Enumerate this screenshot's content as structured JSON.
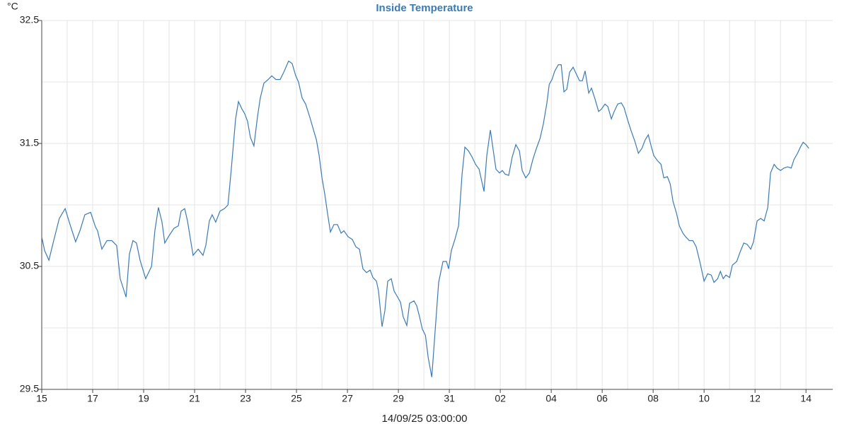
{
  "chart_data": {
    "type": "line",
    "title": "Inside Temperature",
    "y_unit": "°C",
    "x_label": "14/09/25 03:00:00",
    "color": "#3b7bb4",
    "grid": true,
    "xlim": [
      0,
      30.3
    ],
    "ylim": [
      29.5,
      32.5
    ],
    "xticks": [
      {
        "value": 0,
        "label": "15"
      },
      {
        "value": 2,
        "label": "17"
      },
      {
        "value": 4,
        "label": "19"
      },
      {
        "value": 6,
        "label": "21"
      },
      {
        "value": 8,
        "label": "23"
      },
      {
        "value": 10,
        "label": "25"
      },
      {
        "value": 12,
        "label": "27"
      },
      {
        "value": 14,
        "label": "29"
      },
      {
        "value": 16,
        "label": "31"
      },
      {
        "value": 18,
        "label": "02"
      },
      {
        "value": 20,
        "label": "04"
      },
      {
        "value": 22,
        "label": "06"
      },
      {
        "value": 24,
        "label": "08"
      },
      {
        "value": 26,
        "label": "10"
      },
      {
        "value": 28,
        "label": "12"
      },
      {
        "value": 30,
        "label": "14"
      }
    ],
    "xminor": [
      1,
      3,
      5,
      7,
      9,
      11,
      13,
      15,
      17,
      19,
      21,
      23,
      25,
      27,
      29
    ],
    "yticks": [
      29.5,
      30.5,
      31.5,
      32.5
    ],
    "yminor": [
      30,
      31,
      32
    ],
    "x": [
      0,
      0.11,
      0.28,
      0.47,
      0.69,
      0.92,
      1.11,
      1.33,
      1.5,
      1.69,
      1.92,
      2.11,
      2.19,
      2.36,
      2.56,
      2.75,
      2.94,
      3.08,
      3.31,
      3.44,
      3.58,
      3.72,
      3.86,
      4.08,
      4.31,
      4.44,
      4.58,
      4.72,
      4.83,
      5.0,
      5.19,
      5.36,
      5.47,
      5.61,
      5.72,
      5.94,
      6.14,
      6.33,
      6.44,
      6.58,
      6.69,
      6.83,
      7.0,
      7.17,
      7.31,
      7.44,
      7.61,
      7.72,
      7.86,
      7.97,
      8.08,
      8.19,
      8.33,
      8.47,
      8.58,
      8.72,
      8.89,
      9.03,
      9.19,
      9.36,
      9.5,
      9.69,
      9.83,
      9.97,
      10.08,
      10.22,
      10.36,
      10.53,
      10.64,
      10.78,
      10.89,
      11.0,
      11.11,
      11.22,
      11.33,
      11.47,
      11.61,
      11.75,
      11.86,
      12.03,
      12.19,
      12.33,
      12.47,
      12.61,
      12.75,
      12.89,
      13.0,
      13.14,
      13.22,
      13.36,
      13.47,
      13.58,
      13.72,
      13.83,
      13.97,
      14.08,
      14.19,
      14.33,
      14.44,
      14.61,
      14.72,
      14.83,
      14.94,
      15.06,
      15.17,
      15.31,
      15.42,
      15.58,
      15.75,
      15.89,
      15.97,
      16.08,
      16.22,
      16.36,
      16.5,
      16.61,
      16.75,
      16.89,
      17.03,
      17.17,
      17.36,
      17.47,
      17.61,
      17.72,
      17.83,
      17.97,
      18.08,
      18.19,
      18.33,
      18.47,
      18.61,
      18.75,
      18.86,
      19.0,
      19.14,
      19.28,
      19.42,
      19.56,
      19.69,
      19.83,
      19.92,
      20.03,
      20.14,
      20.28,
      20.39,
      20.5,
      20.61,
      20.72,
      20.86,
      20.97,
      21.11,
      21.22,
      21.33,
      21.47,
      21.58,
      21.72,
      21.86,
      21.97,
      22.11,
      22.22,
      22.36,
      22.47,
      22.61,
      22.75,
      22.86,
      23.0,
      23.14,
      23.28,
      23.42,
      23.56,
      23.69,
      23.81,
      23.92,
      24.03,
      24.17,
      24.31,
      24.42,
      24.56,
      24.67,
      24.78,
      24.92,
      25.03,
      25.17,
      25.28,
      25.42,
      25.56,
      25.69,
      25.83,
      26.0,
      26.14,
      26.28,
      26.39,
      26.53,
      26.64,
      26.75,
      26.86,
      27.0,
      27.11,
      27.28,
      27.42,
      27.56,
      27.69,
      27.83,
      27.94,
      28.08,
      28.22,
      28.36,
      28.5,
      28.61,
      28.75,
      28.86,
      29.0,
      29.14,
      29.28,
      29.42,
      29.53,
      29.67,
      29.78,
      29.89,
      30.0,
      30.11
    ],
    "series": [
      {
        "name": "Inside Temperature",
        "color": "#3b7bb4",
        "values": [
          30.74,
          30.63,
          30.55,
          30.71,
          30.89,
          30.97,
          30.84,
          30.7,
          30.79,
          30.92,
          30.94,
          30.82,
          30.79,
          30.64,
          30.71,
          30.71,
          30.67,
          30.4,
          30.25,
          30.6,
          30.71,
          30.69,
          30.55,
          30.4,
          30.5,
          30.79,
          30.98,
          30.86,
          30.69,
          30.75,
          30.81,
          30.83,
          30.95,
          30.97,
          30.87,
          30.59,
          30.64,
          30.59,
          30.67,
          30.87,
          30.92,
          30.86,
          30.95,
          30.97,
          31.0,
          31.29,
          31.7,
          31.84,
          31.78,
          31.74,
          31.68,
          31.55,
          31.48,
          31.72,
          31.87,
          31.99,
          32.02,
          32.05,
          32.02,
          32.02,
          32.08,
          32.17,
          32.15,
          32.05,
          32.0,
          31.87,
          31.82,
          31.71,
          31.63,
          31.53,
          31.4,
          31.22,
          31.09,
          30.93,
          30.78,
          30.84,
          30.84,
          30.77,
          30.79,
          30.74,
          30.72,
          30.66,
          30.64,
          30.48,
          30.45,
          30.47,
          30.41,
          30.38,
          30.3,
          30.01,
          30.14,
          30.38,
          30.4,
          30.3,
          30.25,
          30.21,
          30.09,
          30.02,
          30.2,
          30.22,
          30.18,
          30.09,
          29.99,
          29.94,
          29.76,
          29.6,
          29.91,
          30.37,
          30.54,
          30.54,
          30.48,
          30.63,
          30.72,
          30.83,
          31.25,
          31.47,
          31.44,
          31.39,
          31.33,
          31.29,
          31.11,
          31.4,
          31.61,
          31.45,
          31.29,
          31.26,
          31.28,
          31.25,
          31.24,
          31.39,
          31.49,
          31.44,
          31.28,
          31.22,
          31.26,
          31.37,
          31.46,
          31.54,
          31.66,
          31.83,
          31.98,
          32.02,
          32.09,
          32.14,
          32.14,
          31.92,
          31.94,
          32.08,
          32.12,
          32.07,
          32.01,
          32.01,
          32.09,
          31.91,
          31.95,
          31.86,
          31.76,
          31.78,
          31.82,
          31.8,
          31.7,
          31.76,
          31.82,
          31.83,
          31.79,
          31.69,
          31.6,
          31.52,
          31.42,
          31.46,
          31.53,
          31.57,
          31.48,
          31.4,
          31.36,
          31.33,
          31.22,
          31.23,
          31.17,
          31.03,
          30.93,
          30.83,
          30.77,
          30.74,
          30.71,
          30.71,
          30.66,
          30.54,
          30.38,
          30.44,
          30.43,
          30.37,
          30.4,
          30.46,
          30.4,
          30.43,
          30.41,
          30.51,
          30.54,
          30.62,
          30.69,
          30.68,
          30.64,
          30.7,
          30.87,
          30.89,
          30.87,
          30.98,
          31.26,
          31.33,
          31.3,
          31.28,
          31.3,
          31.31,
          31.3,
          31.37,
          31.42,
          31.47,
          31.51,
          31.49,
          31.46
        ]
      }
    ]
  }
}
